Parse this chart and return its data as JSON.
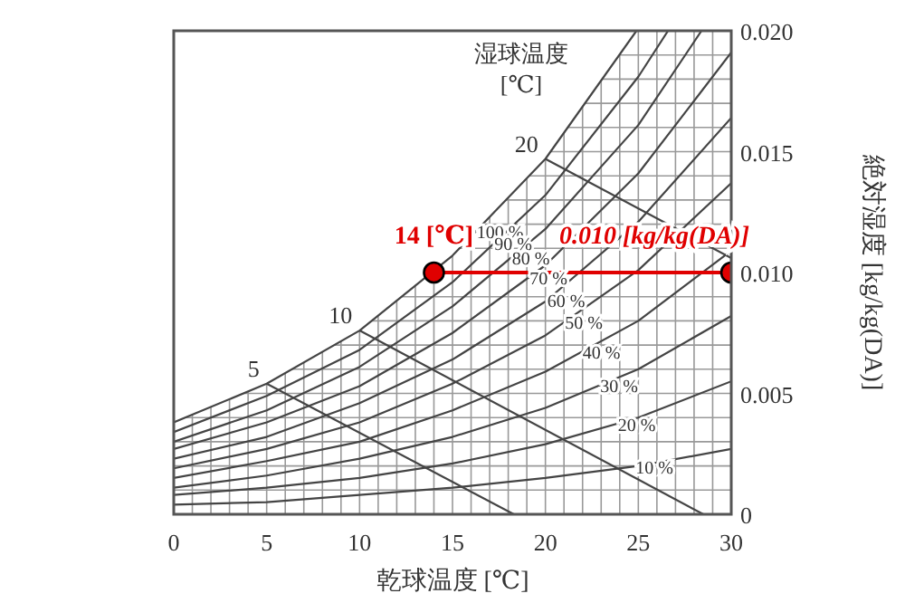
{
  "chart_data": {
    "type": "line",
    "xlabel": "乾球温度 [℃]",
    "ylabel": "絶対湿度 [kg/kg(DA)]",
    "xlim": [
      0,
      30
    ],
    "ylim": [
      0,
      0.02
    ],
    "xticks": [
      0,
      {
        "value": 1,
        "label": null
      },
      {
        "value": 2,
        "label": null
      },
      {
        "value": 3,
        "label": null
      },
      {
        "value": 4,
        "label": null
      },
      5,
      {
        "value": 6,
        "label": null
      },
      {
        "value": 7,
        "label": null
      },
      {
        "value": 8,
        "label": null
      },
      {
        "value": 9,
        "label": null
      },
      10,
      {
        "value": 11,
        "label": null
      },
      {
        "value": 12,
        "label": null
      },
      {
        "value": 13,
        "label": null
      },
      {
        "value": 14,
        "label": null
      },
      15,
      {
        "value": 16,
        "label": null
      },
      {
        "value": 17,
        "label": null
      },
      {
        "value": 18,
        "label": null
      },
      {
        "value": 19,
        "label": null
      },
      20,
      {
        "value": 21,
        "label": null
      },
      {
        "value": 22,
        "label": null
      },
      {
        "value": 23,
        "label": null
      },
      {
        "value": 24,
        "label": null
      },
      25,
      {
        "value": 26,
        "label": null
      },
      {
        "value": 27,
        "label": null
      },
      {
        "value": 28,
        "label": null
      },
      {
        "value": 29,
        "label": null
      },
      30
    ],
    "yticks": [
      {
        "value": 0,
        "label": "0"
      },
      {
        "value": 0.005,
        "label": "0.005"
      },
      {
        "value": 0.01,
        "label": "0.010"
      },
      {
        "value": 0.015,
        "label": "0.015"
      },
      {
        "value": 0.02,
        "label": "0.020"
      }
    ],
    "grid": true,
    "legend": false,
    "marker": "none",
    "line_style": "solid",
    "series": [
      {
        "name": "100 %",
        "color": "#444444",
        "x": [
          0,
          5,
          10,
          15,
          20,
          24.9
        ],
        "values": [
          0.0038,
          0.0054,
          0.0076,
          0.0107,
          0.0147,
          0.02
        ]
      },
      {
        "name": "90 %",
        "color": "#444444",
        "x": [
          0,
          5,
          10,
          15,
          20,
          25,
          26.6
        ],
        "values": [
          0.0034,
          0.0049,
          0.0068,
          0.0096,
          0.0132,
          0.0181,
          0.02
        ]
      },
      {
        "name": "80 %",
        "color": "#444444",
        "x": [
          0,
          5,
          10,
          15,
          20,
          25,
          28.4
        ],
        "values": [
          0.003,
          0.0043,
          0.0061,
          0.0086,
          0.0118,
          0.0161,
          0.02
        ]
      },
      {
        "name": "70 %",
        "color": "#444444",
        "x": [
          0,
          5,
          10,
          15,
          20,
          25,
          30
        ],
        "values": [
          0.0027,
          0.0038,
          0.0053,
          0.0075,
          0.0103,
          0.0141,
          0.0191
        ]
      },
      {
        "name": "60 %",
        "color": "#444444",
        "x": [
          0,
          5,
          10,
          15,
          20,
          25,
          30
        ],
        "values": [
          0.0023,
          0.0032,
          0.0046,
          0.0064,
          0.0088,
          0.0121,
          0.0164
        ]
      },
      {
        "name": "50 %",
        "color": "#444444",
        "x": [
          0,
          5,
          10,
          15,
          20,
          25,
          30
        ],
        "values": [
          0.0019,
          0.0027,
          0.0038,
          0.0054,
          0.0074,
          0.0101,
          0.0137
        ]
      },
      {
        "name": "40 %",
        "color": "#444444",
        "x": [
          0,
          5,
          10,
          15,
          20,
          25,
          30
        ],
        "values": [
          0.0015,
          0.0022,
          0.003,
          0.0043,
          0.0059,
          0.008,
          0.0109
        ]
      },
      {
        "name": "30 %",
        "color": "#444444",
        "x": [
          0,
          5,
          10,
          15,
          20,
          25,
          30
        ],
        "values": [
          0.0011,
          0.0016,
          0.0023,
          0.0032,
          0.0044,
          0.006,
          0.0082
        ]
      },
      {
        "name": "20 %",
        "color": "#444444",
        "x": [
          0,
          5,
          10,
          15,
          20,
          25,
          30
        ],
        "values": [
          0.0008,
          0.0011,
          0.0015,
          0.0021,
          0.0029,
          0.004,
          0.0055
        ]
      },
      {
        "name": "10 %",
        "color": "#444444",
        "x": [
          0,
          5,
          10,
          15,
          20,
          25,
          30
        ],
        "values": [
          0.0004,
          0.0005,
          0.0008,
          0.0011,
          0.0015,
          0.002,
          0.0027
        ]
      },
      {
        "name": "5",
        "color": "#444444",
        "x": [
          5,
          18.3
        ],
        "values": [
          0.0054,
          0
        ]
      },
      {
        "name": "10",
        "color": "#444444",
        "x": [
          10,
          28.5
        ],
        "values": [
          0.0076,
          0
        ]
      },
      {
        "name": "20",
        "color": "#444444",
        "x": [
          20,
          30
        ],
        "values": [
          0.0147,
          0.0106
        ]
      },
      {
        "color": "#e00000",
        "marker": "circle",
        "x": [
          14,
          30
        ],
        "values": [
          0.01,
          0.01
        ]
      }
    ],
    "annotations": [
      "湿球温度 [℃]",
      {
        "text": "14 [℃]",
        "x": 14,
        "y": 0.01
      },
      {
        "text": "0.010 [kg/kg(DA)]",
        "x": 30,
        "y": 0.01
      }
    ]
  }
}
